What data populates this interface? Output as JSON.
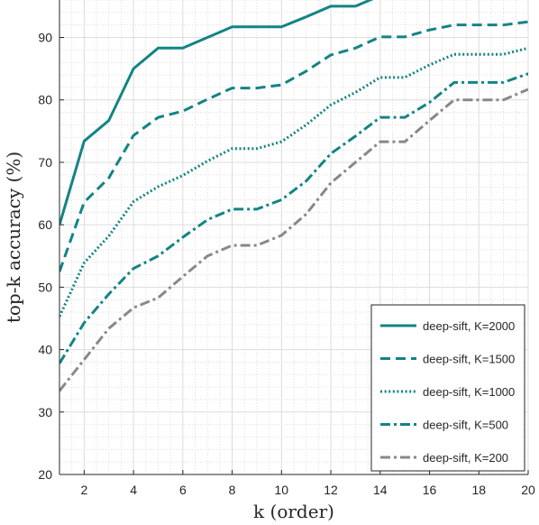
{
  "chart_data": {
    "type": "line",
    "title": "",
    "xlabel": "k (order)",
    "ylabel": "top-k accuracy (%)",
    "xlim": [
      1,
      20
    ],
    "ylim": [
      20,
      96
    ],
    "xticks": [
      2,
      4,
      6,
      8,
      10,
      12,
      14,
      16,
      18,
      20
    ],
    "yticks": [
      20,
      30,
      40,
      50,
      60,
      70,
      80,
      90
    ],
    "grid": true,
    "minor_grid": true,
    "legend_position": "bottom-right",
    "x": [
      1,
      2,
      3,
      4,
      5,
      6,
      7,
      8,
      9,
      10,
      11,
      12,
      13,
      14,
      15,
      16,
      17,
      18,
      19,
      20
    ],
    "series": [
      {
        "name": "deep-sift, K=2000",
        "color": "#138484",
        "dash": "solid",
        "values": [
          60.0,
          73.4,
          76.7,
          85.0,
          88.3,
          88.3,
          90.0,
          91.7,
          91.7,
          91.7,
          93.3,
          95.0,
          95.0,
          96.7,
          96.7,
          96.7,
          96.7,
          96.7,
          96.7,
          96.7
        ]
      },
      {
        "name": "deep-sift, K=1500",
        "color": "#138484",
        "dash": "dashed",
        "values": [
          52.5,
          63.6,
          67.5,
          74.3,
          77.2,
          78.2,
          80.1,
          81.9,
          81.9,
          82.4,
          84.6,
          87.2,
          88.3,
          90.1,
          90.1,
          91.2,
          92.0,
          92.0,
          92.0,
          92.5
        ]
      },
      {
        "name": "deep-sift, K=1000",
        "color": "#138484",
        "dash": "dotted",
        "values": [
          45.3,
          53.9,
          58.2,
          63.7,
          66.1,
          67.9,
          70.2,
          72.2,
          72.2,
          73.3,
          76.0,
          79.2,
          81.2,
          83.6,
          83.6,
          85.6,
          87.3,
          87.3,
          87.3,
          88.3
        ]
      },
      {
        "name": "deep-sift, K=500",
        "color": "#138484",
        "dash": "dashdot",
        "values": [
          37.8,
          44.3,
          48.9,
          53.0,
          55.0,
          58.0,
          60.8,
          62.5,
          62.5,
          64.0,
          67.0,
          71.4,
          74.2,
          77.2,
          77.2,
          79.6,
          82.8,
          82.8,
          82.8,
          84.2
        ]
      },
      {
        "name": "deep-sift, K=200",
        "color": "#888888",
        "dash": "dashdot",
        "values": [
          33.4,
          38.4,
          43.4,
          46.7,
          48.3,
          51.7,
          55.0,
          56.7,
          56.7,
          58.3,
          61.7,
          66.7,
          70.0,
          73.3,
          73.3,
          76.7,
          80.0,
          80.0,
          80.0,
          81.7
        ]
      }
    ]
  }
}
